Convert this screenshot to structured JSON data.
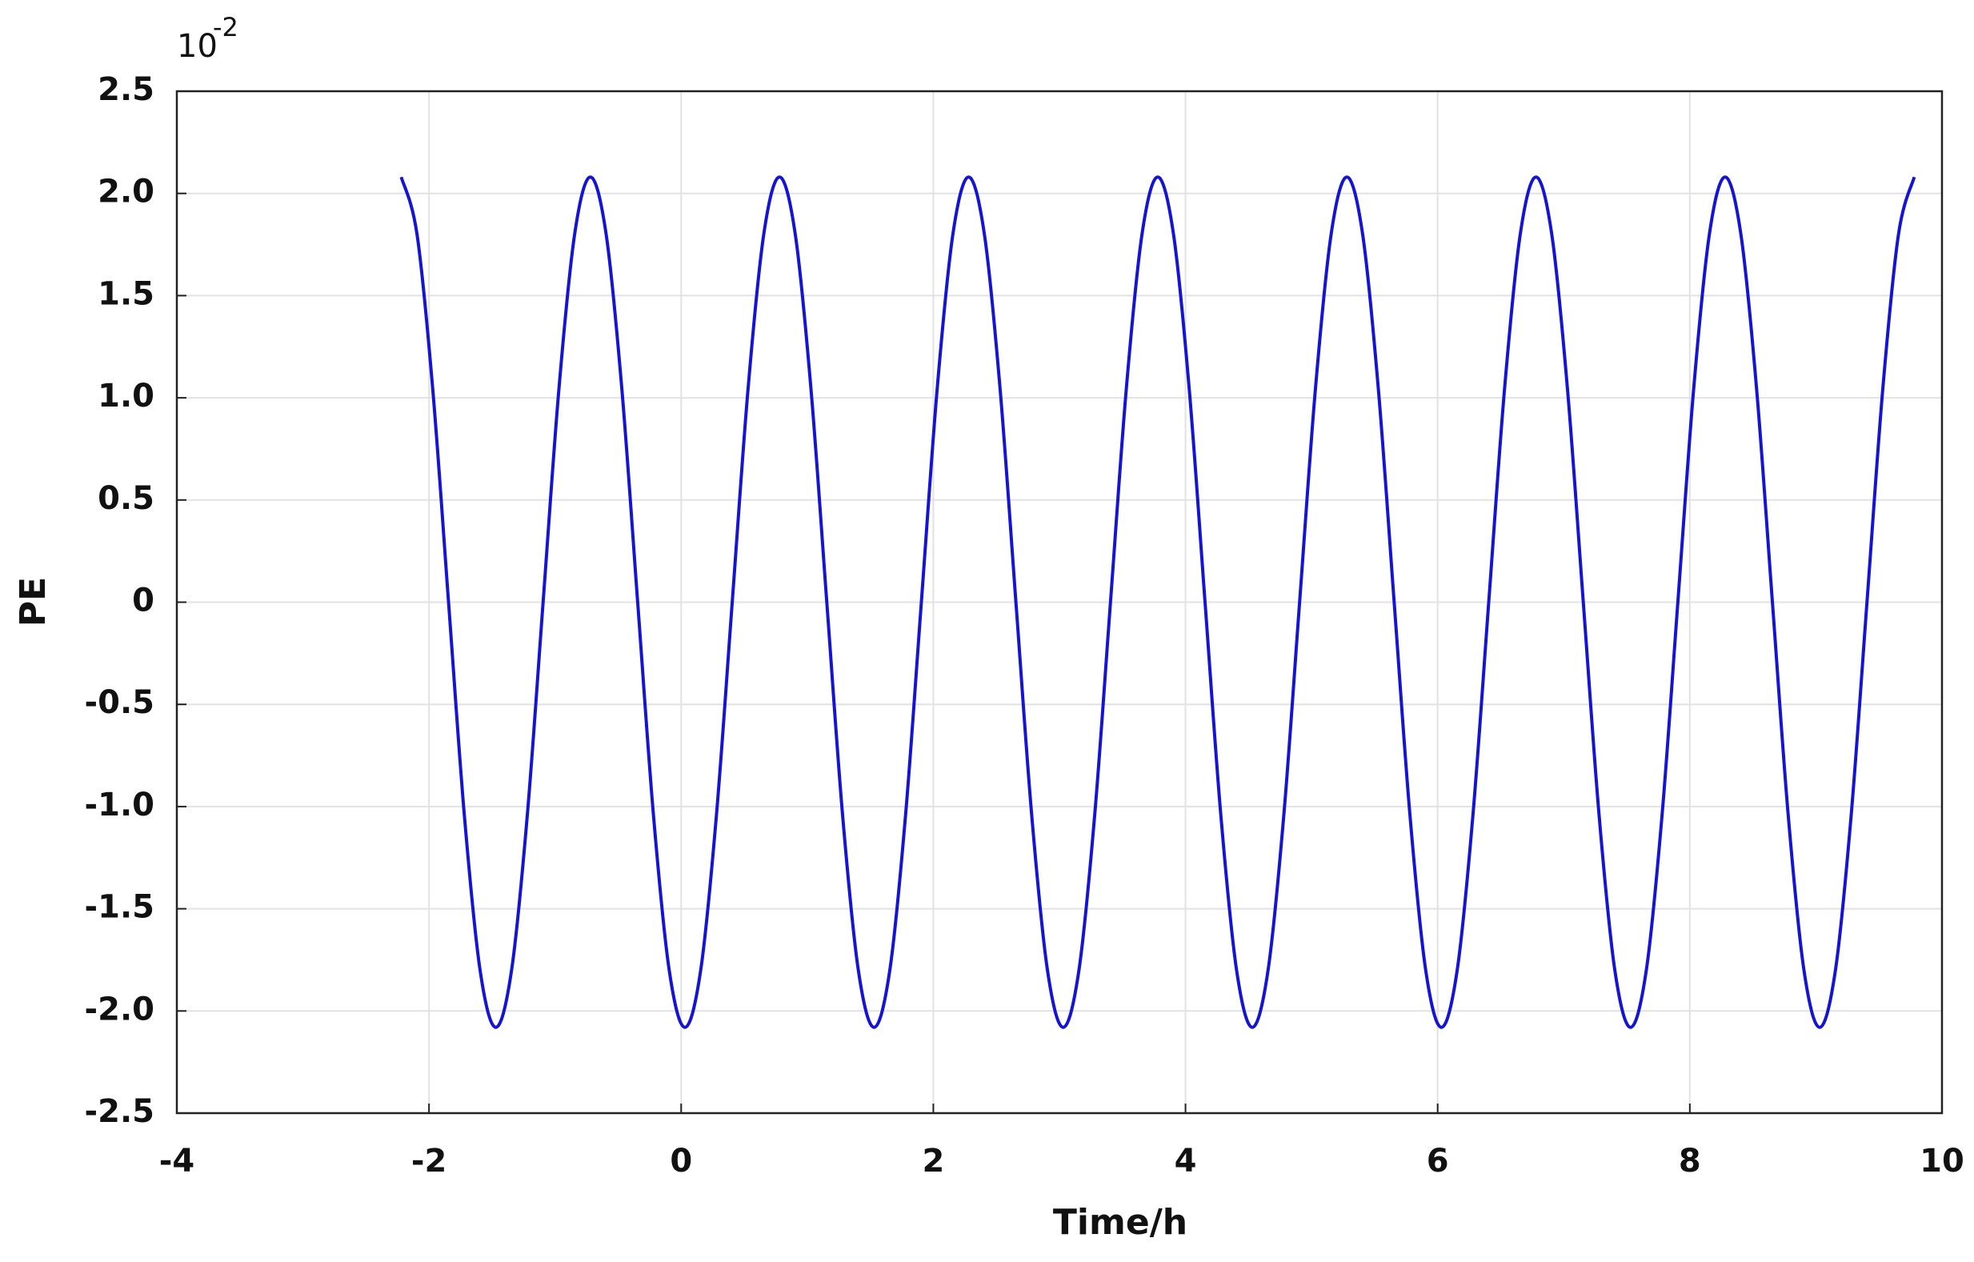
{
  "chart_data": {
    "type": "line",
    "xlabel": "Time/h",
    "ylabel": "PE",
    "y_exponent_base": "10",
    "y_exponent": "-2",
    "xlim": [
      -4,
      10
    ],
    "ylim": [
      -2.5,
      2.5
    ],
    "xticks": [
      -4,
      -2,
      0,
      2,
      4,
      6,
      8,
      10
    ],
    "yticks": [
      {
        "value": 2.5,
        "label": "2.5"
      },
      {
        "value": 2,
        "label": "2.0"
      },
      {
        "value": 1.5,
        "label": "1.5"
      },
      {
        "value": 1,
        "label": "1.0"
      },
      {
        "value": 0.5,
        "label": "0.5"
      },
      0,
      {
        "value": -0.5,
        "label": "-0.5"
      },
      {
        "value": -1,
        "label": "-1.0"
      },
      {
        "value": -1.5,
        "label": "-1.5"
      },
      {
        "value": -2,
        "label": "-2.0"
      },
      {
        "value": -2.5,
        "label": "-2.5"
      }
    ],
    "grid": true,
    "x": [
      -2.22,
      -2.095,
      -1.97,
      -1.845,
      -1.72,
      -1.595,
      -1.47,
      -1.345,
      -1.22,
      -1.095,
      -0.97,
      -0.845,
      -0.72,
      -0.595,
      -0.47,
      -0.345,
      -0.22,
      -0.095,
      0.03,
      0.155,
      0.28,
      0.405,
      0.53,
      0.655,
      0.78,
      0.905,
      1.03,
      1.155,
      1.28,
      1.405,
      1.53,
      1.655,
      1.78,
      1.905,
      2.03,
      2.155,
      2.28,
      2.405,
      2.53,
      2.655,
      2.78,
      2.905,
      3.03,
      3.155,
      3.28,
      3.405,
      3.53,
      3.655,
      3.78,
      3.905,
      4.03,
      4.155,
      4.28,
      4.405,
      4.53,
      4.655,
      4.78,
      4.905,
      5.03,
      5.155,
      5.28,
      5.405,
      5.53,
      5.655,
      5.78,
      5.905,
      6.03,
      6.155,
      6.28,
      6.405,
      6.53,
      6.655,
      6.78,
      6.905,
      7.03,
      7.155,
      7.28,
      7.405,
      7.53,
      7.655,
      7.78,
      7.905,
      8.03,
      8.155,
      8.28,
      8.405,
      8.53,
      8.655,
      8.78,
      8.905,
      9.03,
      9.155,
      9.28,
      9.405,
      9.53,
      9.655,
      9.78
    ],
    "series": [
      {
        "color": "#1414d2",
        "values": [
          2.08,
          1.8,
          1.04,
          0,
          -1.04,
          -1.8,
          -2.08,
          -1.8,
          -1.04,
          0,
          1.04,
          1.8,
          2.08,
          1.8,
          1.04,
          0,
          -1.04,
          -1.8,
          -2.08,
          -1.8,
          -1.04,
          0,
          1.04,
          1.8,
          2.08,
          1.8,
          1.04,
          0,
          -1.04,
          -1.8,
          -2.08,
          -1.8,
          -1.04,
          0,
          1.04,
          1.8,
          2.08,
          1.8,
          1.04,
          0,
          -1.04,
          -1.8,
          -2.08,
          -1.8,
          -1.04,
          0,
          1.04,
          1.8,
          2.08,
          1.8,
          1.04,
          0,
          -1.04,
          -1.8,
          -2.08,
          -1.8,
          -1.04,
          0,
          1.04,
          1.8,
          2.08,
          1.8,
          1.04,
          0,
          -1.04,
          -1.8,
          -2.08,
          -1.8,
          -1.04,
          0,
          1.04,
          1.8,
          2.08,
          1.8,
          1.04,
          0,
          -1.04,
          -1.8,
          -2.08,
          -1.8,
          -1.04,
          0,
          1.04,
          1.8,
          2.08,
          1.8,
          1.04,
          0,
          -1.04,
          -1.8,
          -2.08,
          -1.8,
          -1.04,
          0,
          1.04,
          1.8,
          2.08
        ]
      }
    ]
  }
}
